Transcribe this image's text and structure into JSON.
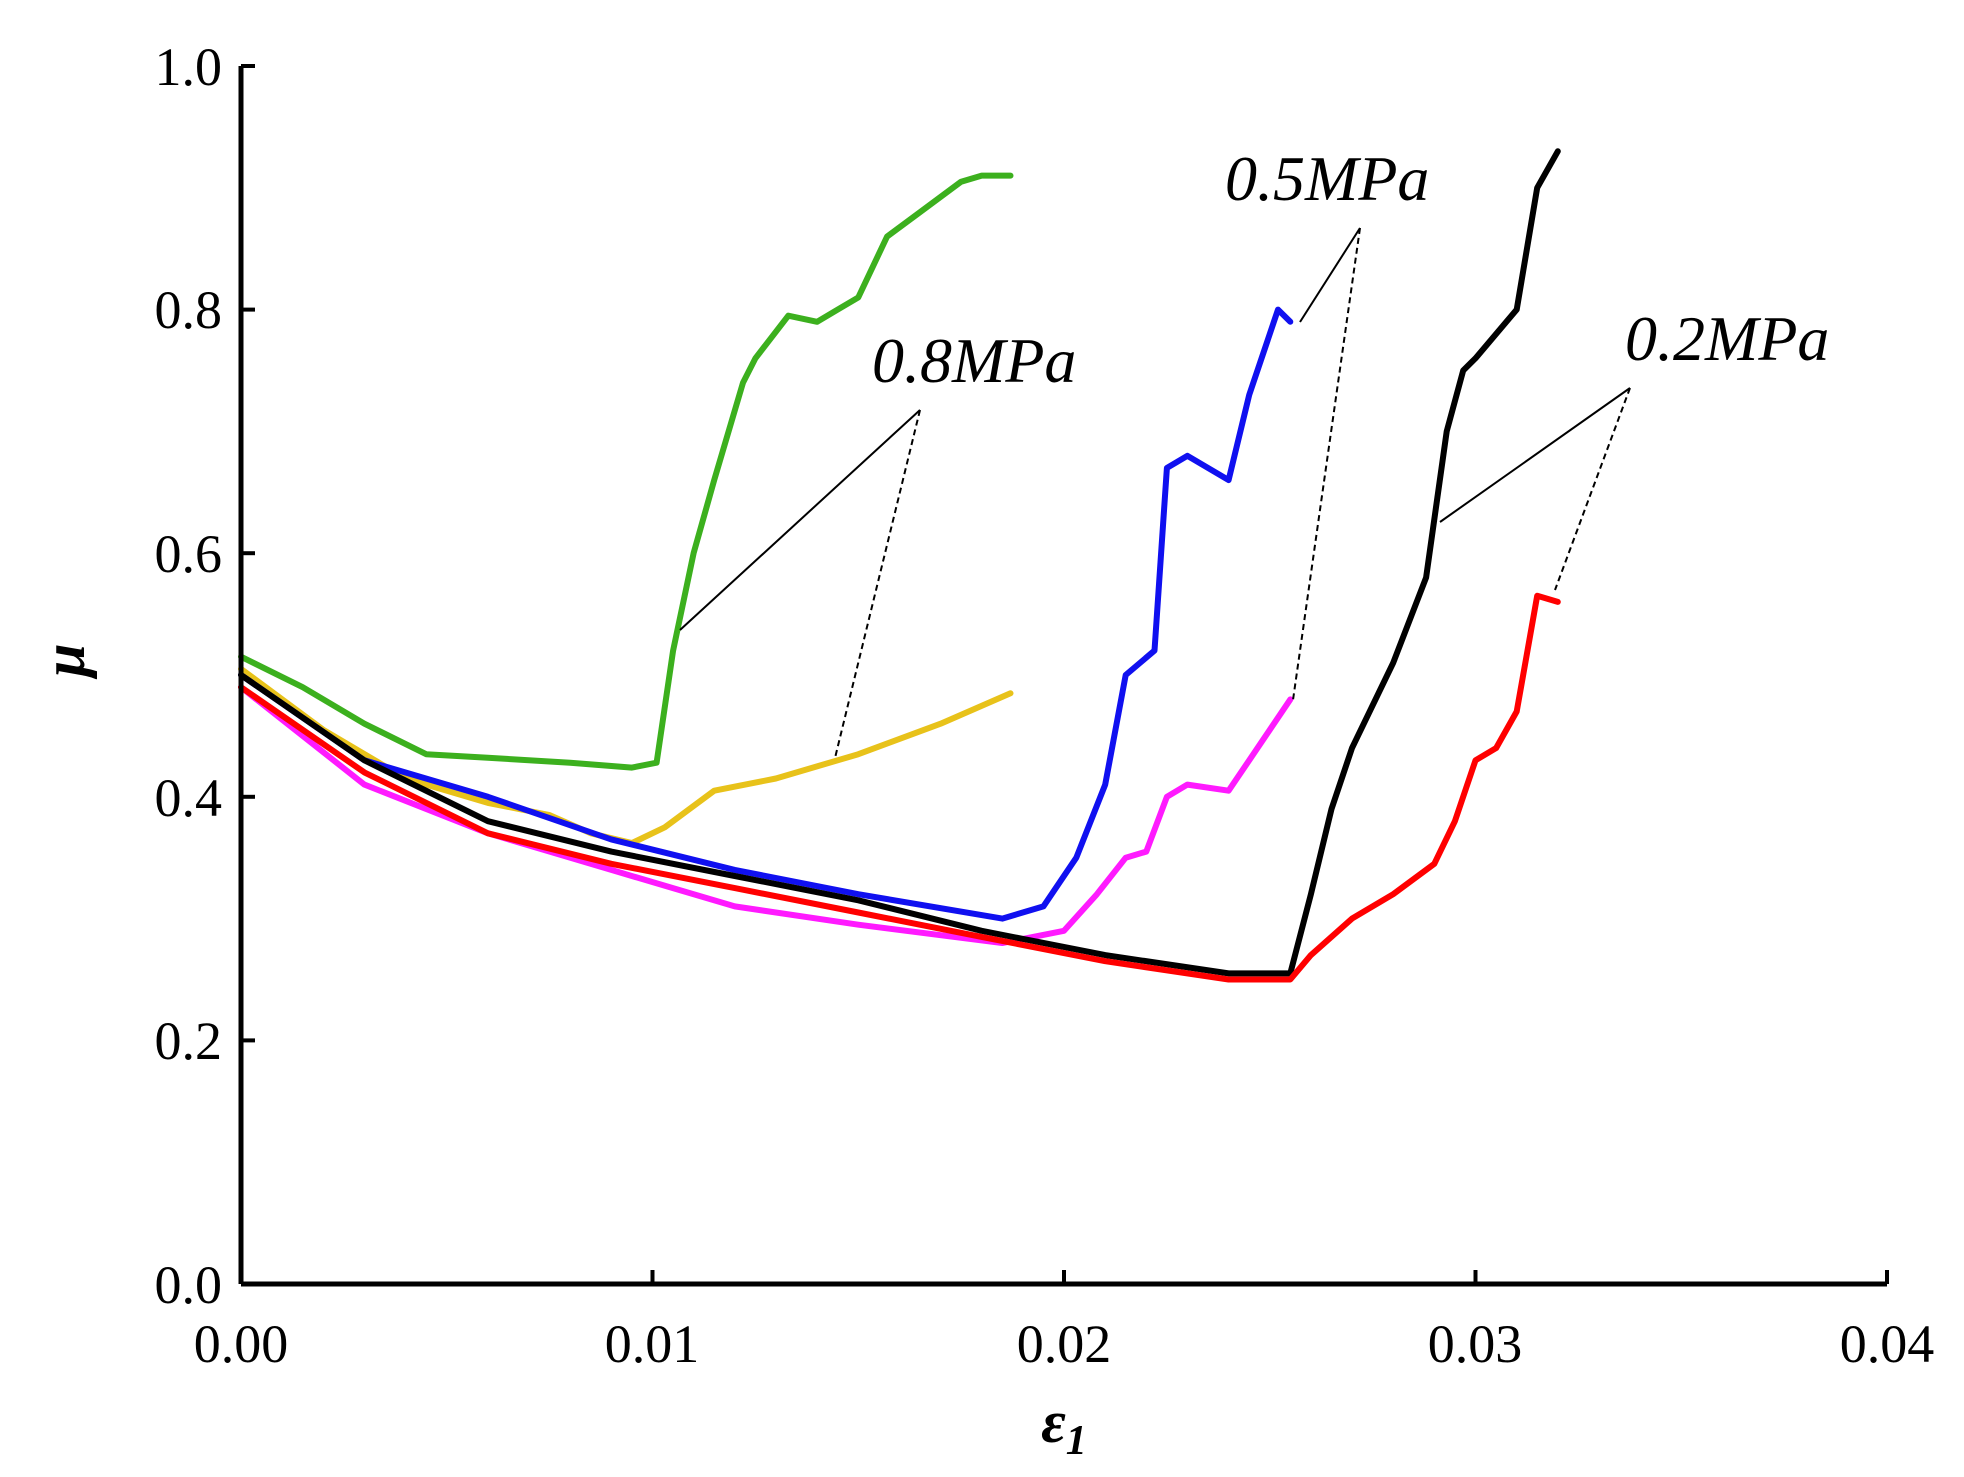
{
  "chart_data": {
    "type": "line",
    "title": "",
    "xlabel": "ε",
    "xlabel_sub": "1",
    "ylabel": "μ",
    "xlim": [
      0.0,
      0.04
    ],
    "ylim": [
      0.0,
      1.0
    ],
    "x_ticks": [
      "0.00",
      "0.01",
      "0.02",
      "0.03",
      "0.04"
    ],
    "y_ticks": [
      "0.0",
      "0.2",
      "0.4",
      "0.6",
      "0.8",
      "1.0"
    ],
    "grid": false,
    "series": [
      {
        "name": "green (0.8MPa)",
        "color": "#3cb01e",
        "x": [
          0.0,
          0.0015,
          0.003,
          0.0045,
          0.006,
          0.008,
          0.0095,
          0.0101,
          0.0105,
          0.011,
          0.0115,
          0.0122,
          0.0125,
          0.0133,
          0.014,
          0.0145,
          0.015,
          0.0157,
          0.0165,
          0.0175,
          0.018,
          0.0187
        ],
        "y": [
          0.515,
          0.49,
          0.46,
          0.435,
          0.432,
          0.428,
          0.424,
          0.428,
          0.52,
          0.6,
          0.66,
          0.74,
          0.76,
          0.795,
          0.79,
          0.8,
          0.81,
          0.86,
          0.88,
          0.905,
          0.91,
          0.91
        ]
      },
      {
        "name": "yellow (0.8MPa)",
        "color": "#e8c21a",
        "x": [
          0.0,
          0.002,
          0.004,
          0.006,
          0.0075,
          0.0085,
          0.0095,
          0.0103,
          0.0115,
          0.013,
          0.015,
          0.017,
          0.0187
        ],
        "y": [
          0.505,
          0.455,
          0.415,
          0.395,
          0.385,
          0.37,
          0.362,
          0.375,
          0.405,
          0.415,
          0.435,
          0.46,
          0.485
        ]
      },
      {
        "name": "blue (0.5MPa)",
        "color": "#1010f0",
        "x": [
          0.0,
          0.003,
          0.006,
          0.009,
          0.012,
          0.015,
          0.0185,
          0.0195,
          0.0203,
          0.021,
          0.0215,
          0.0222,
          0.0225,
          0.023,
          0.0235,
          0.024,
          0.0245,
          0.0252,
          0.0255
        ],
        "y": [
          0.5,
          0.43,
          0.4,
          0.365,
          0.34,
          0.32,
          0.3,
          0.31,
          0.35,
          0.41,
          0.5,
          0.52,
          0.67,
          0.68,
          0.67,
          0.66,
          0.73,
          0.8,
          0.79
        ]
      },
      {
        "name": "magenta (0.5MPa)",
        "color": "#ff1aff",
        "x": [
          0.0,
          0.003,
          0.006,
          0.009,
          0.012,
          0.015,
          0.0185,
          0.02,
          0.0208,
          0.0215,
          0.022,
          0.0225,
          0.023,
          0.024,
          0.0245,
          0.025,
          0.0255
        ],
        "y": [
          0.49,
          0.41,
          0.37,
          0.34,
          0.31,
          0.295,
          0.28,
          0.29,
          0.32,
          0.35,
          0.355,
          0.4,
          0.41,
          0.405,
          0.43,
          0.455,
          0.48
        ]
      },
      {
        "name": "black (0.2MPa)",
        "color": "#000000",
        "x": [
          0.0,
          0.003,
          0.006,
          0.009,
          0.012,
          0.015,
          0.018,
          0.021,
          0.024,
          0.0255,
          0.026,
          0.0265,
          0.027,
          0.028,
          0.0288,
          0.0293,
          0.0297,
          0.03,
          0.031,
          0.0315,
          0.032
        ],
        "y": [
          0.5,
          0.43,
          0.38,
          0.355,
          0.335,
          0.315,
          0.29,
          0.27,
          0.255,
          0.255,
          0.32,
          0.39,
          0.44,
          0.51,
          0.58,
          0.7,
          0.75,
          0.76,
          0.8,
          0.9,
          0.93
        ]
      },
      {
        "name": "red (0.2MPa)",
        "color": "#ff0000",
        "x": [
          0.0,
          0.003,
          0.006,
          0.009,
          0.012,
          0.015,
          0.018,
          0.021,
          0.024,
          0.0255,
          0.026,
          0.027,
          0.028,
          0.029,
          0.0295,
          0.03,
          0.0305,
          0.031,
          0.0315,
          0.032
        ],
        "y": [
          0.49,
          0.42,
          0.37,
          0.345,
          0.325,
          0.305,
          0.285,
          0.265,
          0.25,
          0.25,
          0.27,
          0.3,
          0.32,
          0.345,
          0.38,
          0.43,
          0.44,
          0.47,
          0.565,
          0.56
        ]
      }
    ],
    "annotations": [
      {
        "text": "0.8MPa"
      },
      {
        "text": "0.5MPa"
      },
      {
        "text": "0.2MPa"
      }
    ]
  }
}
